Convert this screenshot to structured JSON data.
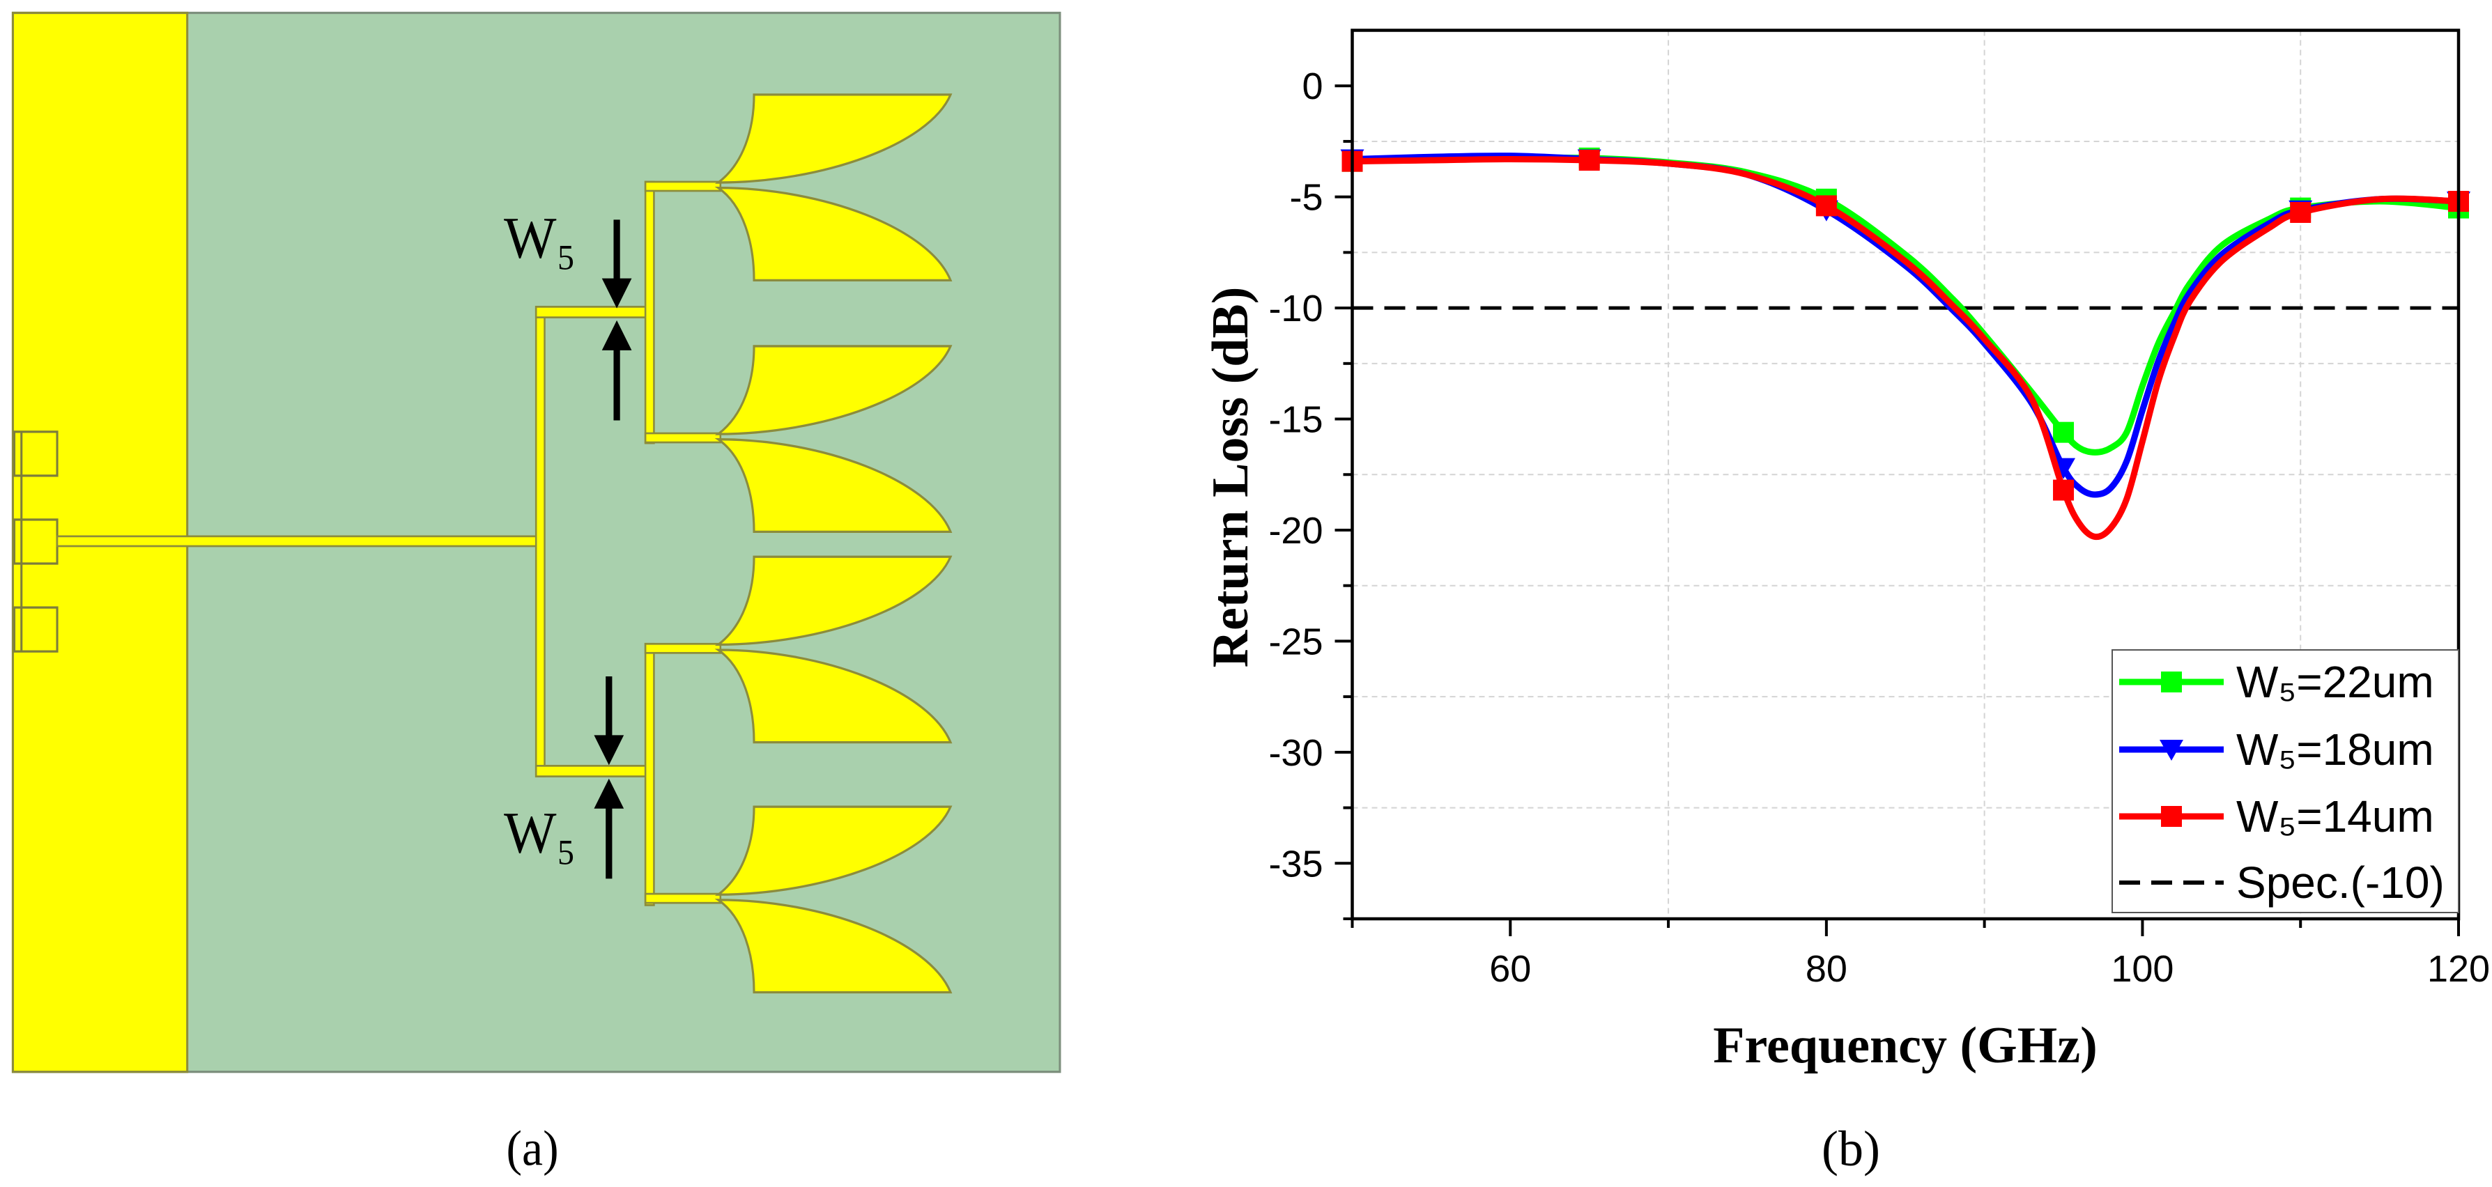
{
  "panel_a": {
    "caption": "(a)",
    "w5_label_upper": "W₅",
    "w5_label_lower": "W₅",
    "colors": {
      "substrate": "#a9d0ad",
      "metal": "#ffff00",
      "edge": "#8c8c3c"
    }
  },
  "panel_b": {
    "caption": "(b)"
  },
  "chart_data": {
    "type": "line",
    "title": "",
    "xlabel": "Frequency (GHz)",
    "ylabel": "Return Loss (dB)",
    "xlim": [
      50,
      120
    ],
    "ylim": [
      -37.5,
      2.5
    ],
    "x_ticks": [
      60,
      80,
      100,
      120
    ],
    "x_tick_labels": [
      "60",
      "80",
      "100",
      "120"
    ],
    "y_ticks": [
      0,
      -5,
      -10,
      -15,
      -20,
      -25,
      -30,
      -35
    ],
    "y_tick_labels": [
      "0",
      "-5",
      "-10",
      "-15",
      "-20",
      "-25",
      "-30",
      "-35"
    ],
    "grid": "dashed light gray (minor)",
    "legend_position": "bottom-right",
    "x": [
      50,
      55,
      60,
      65,
      70,
      75,
      80,
      85,
      88,
      90,
      93,
      95,
      96,
      97,
      98,
      99,
      100,
      101,
      102,
      103,
      105,
      108,
      110,
      115,
      120
    ],
    "marker_x": [
      50,
      65,
      80,
      95,
      110,
      120
    ],
    "series": [
      {
        "name": "W₅=22um",
        "color": "#00ff00",
        "marker": "square",
        "values": [
          -3.4,
          -3.3,
          -3.25,
          -3.25,
          -3.45,
          -3.9,
          -5.1,
          -7.6,
          -9.6,
          -11.2,
          -13.8,
          -15.6,
          -16.3,
          -16.5,
          -16.3,
          -15.6,
          -13.5,
          -11.6,
          -10.2,
          -8.9,
          -7.2,
          -6.0,
          -5.5,
          -5.2,
          -5.5
        ]
      },
      {
        "name": "W₅=18um",
        "color": "#0000ff",
        "marker": "triangle-down",
        "values": [
          -3.3,
          -3.2,
          -3.15,
          -3.3,
          -3.5,
          -4.0,
          -5.6,
          -8.1,
          -10.1,
          -11.6,
          -14.3,
          -17.2,
          -18.1,
          -18.4,
          -18.1,
          -16.9,
          -14.6,
          -12.4,
          -10.7,
          -9.3,
          -7.6,
          -6.2,
          -5.6,
          -5.1,
          -5.2
        ]
      },
      {
        "name": "W₅=14um",
        "color": "#ff0000",
        "marker": "square",
        "values": [
          -3.4,
          -3.35,
          -3.3,
          -3.35,
          -3.5,
          -4.0,
          -5.4,
          -7.9,
          -9.9,
          -11.4,
          -14.1,
          -18.2,
          -19.7,
          -20.3,
          -19.9,
          -18.6,
          -16.0,
          -13.3,
          -11.3,
          -9.7,
          -7.9,
          -6.4,
          -5.7,
          -5.1,
          -5.2
        ]
      }
    ],
    "reference_line": {
      "name": "Spec.(-10)",
      "y": -10,
      "color": "#000000",
      "style": "dashed"
    }
  }
}
